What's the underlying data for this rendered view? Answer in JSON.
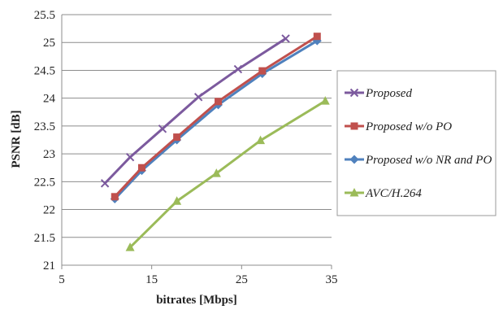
{
  "chart_data": {
    "type": "line",
    "title": "",
    "xlabel": "bitrates [Mbps]",
    "ylabel": "PSNR [dB]",
    "xlim": [
      5,
      35
    ],
    "ylim": [
      21,
      25.5
    ],
    "x_ticks": [
      5,
      15,
      25,
      35
    ],
    "y_ticks": [
      21,
      21.5,
      22,
      22.5,
      23,
      23.5,
      24,
      24.5,
      25,
      25.5
    ],
    "grid": "horizontal",
    "legend_position": "right",
    "series": [
      {
        "name": "Proposed",
        "color": "#7c5a9e",
        "marker": "x",
        "x": [
          9.8,
          12.6,
          16.2,
          20.2,
          24.6,
          29.9
        ],
        "y": [
          22.47,
          22.94,
          23.45,
          24.02,
          24.52,
          25.07
        ]
      },
      {
        "name": "Proposed w/o PO",
        "color": "#c0504d",
        "marker": "square",
        "x": [
          10.9,
          13.9,
          17.8,
          22.4,
          27.3,
          33.4
        ],
        "y": [
          22.23,
          22.75,
          23.3,
          23.94,
          24.49,
          25.11
        ]
      },
      {
        "name": "Proposed w/o NR and PO",
        "color": "#4f81bd",
        "marker": "diamond",
        "x": [
          10.9,
          13.9,
          17.8,
          22.4,
          27.3,
          33.4
        ],
        "y": [
          22.19,
          22.7,
          23.25,
          23.88,
          24.44,
          25.03
        ]
      },
      {
        "name": "AVC/H.264",
        "color": "#9bbb59",
        "marker": "triangle",
        "x": [
          12.6,
          17.8,
          22.2,
          27.1,
          34.3
        ],
        "y": [
          21.32,
          22.15,
          22.65,
          23.24,
          23.95
        ]
      }
    ]
  }
}
